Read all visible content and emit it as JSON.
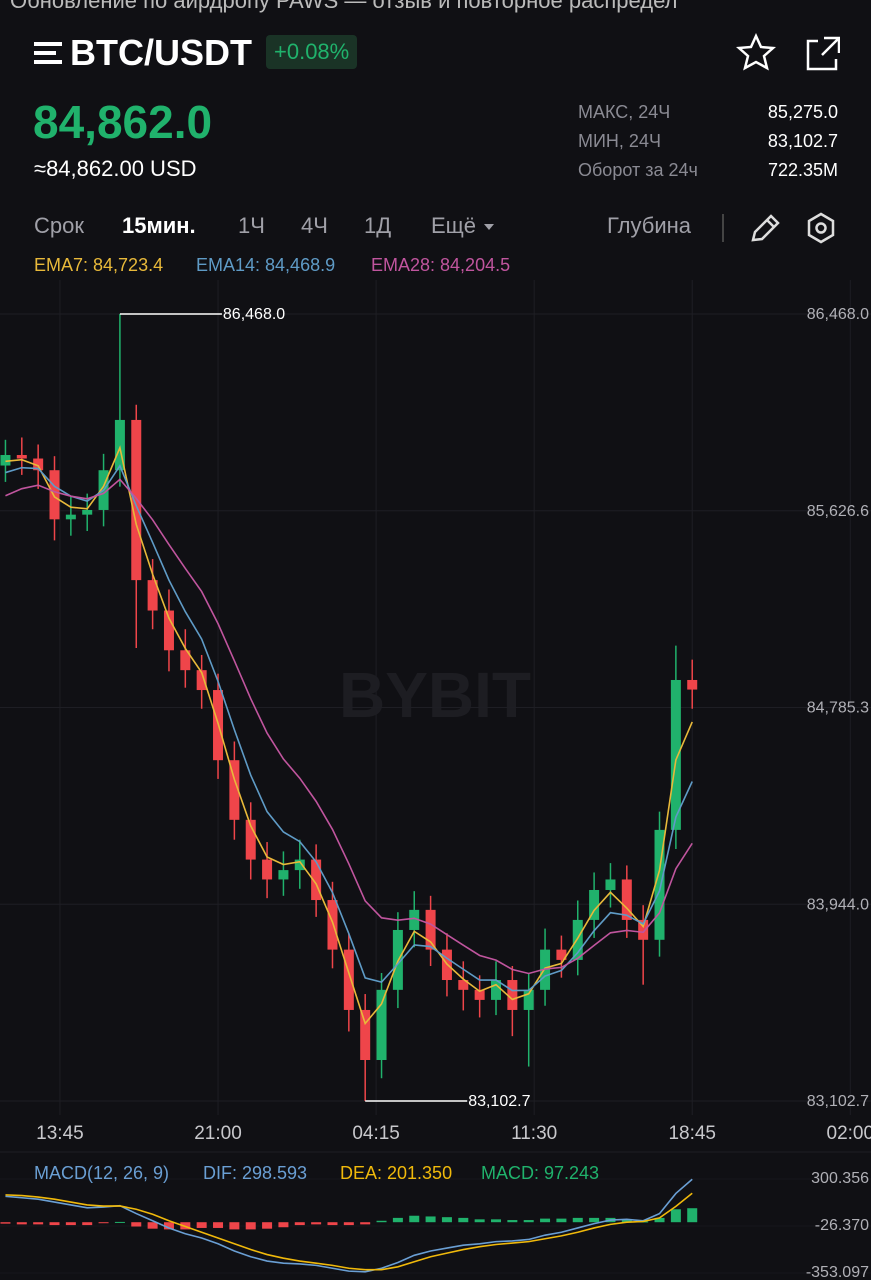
{
  "notification": "Обновление по аирдропу PAWS — отзыв и повторное распредел",
  "header": {
    "symbol": "BTC/USDT",
    "change": "+0.08%",
    "price": "84,862.0",
    "price_usd": "≈84,862.00 USD",
    "stats": [
      {
        "label": "МАКС, 24Ч",
        "value": "85,275.0"
      },
      {
        "label": "МИН, 24Ч",
        "value": "83,102.7"
      },
      {
        "label": "Оборот за 24ч",
        "value": "722.35M"
      }
    ]
  },
  "toolbar": {
    "tabs": [
      "Срок",
      "15мин.",
      "1Ч",
      "4Ч",
      "1Д",
      "Ещё"
    ],
    "depth": "Глубина"
  },
  "chart_data": [
    {
      "type": "candlestick",
      "watermark": "BYBIT",
      "up_color": "#20b26c",
      "down_color": "#ef454a",
      "grid": true,
      "x": [
        -10,
        -7,
        -4,
        -1,
        2,
        5,
        8,
        11,
        14,
        17,
        20,
        23,
        26,
        29,
        32,
        35,
        38,
        41,
        44,
        47,
        50,
        53,
        56,
        59,
        62,
        65,
        68,
        71,
        74,
        77,
        80,
        83,
        86,
        89,
        92,
        95,
        98,
        101,
        104,
        107,
        110,
        113,
        116
      ],
      "open": [
        85820,
        85865,
        85850,
        85800,
        85590,
        85610,
        85630,
        85800,
        86015,
        85330,
        85200,
        85030,
        84945,
        84860,
        84560,
        84305,
        84135,
        84050,
        84090,
        84135,
        83962,
        83750,
        83492,
        83278,
        83578,
        83834,
        83920,
        83750,
        83620,
        83578,
        83535,
        83620,
        83492,
        83578,
        83750,
        83706,
        83877,
        84005,
        84050,
        83877,
        83792,
        84262,
        84903
      ],
      "high": [
        85930,
        85940,
        85910,
        85860,
        85690,
        85700,
        85870,
        86468,
        86080,
        85420,
        85290,
        85120,
        85010,
        84930,
        84640,
        84380,
        84210,
        84170,
        84220,
        84200,
        84040,
        83820,
        83560,
        83650,
        83910,
        84000,
        83980,
        83820,
        83700,
        83640,
        83700,
        83680,
        83650,
        83840,
        83810,
        83960,
        84080,
        84120,
        84110,
        83940,
        84340,
        85050,
        84990
      ],
      "low": [
        85750,
        85780,
        85720,
        85500,
        85520,
        85540,
        85560,
        85730,
        85040,
        85120,
        84940,
        84870,
        84780,
        84480,
        84220,
        84050,
        83970,
        83980,
        84010,
        83890,
        83670,
        83400,
        83102.7,
        83200,
        83500,
        83760,
        83680,
        83550,
        83490,
        83460,
        83470,
        83380,
        83250,
        83510,
        83630,
        83640,
        83800,
        83930,
        83800,
        83600,
        83720,
        84180,
        84780
      ],
      "close": [
        85865,
        85850,
        85800,
        85590,
        85610,
        85630,
        85800,
        86015,
        85330,
        85200,
        85030,
        84945,
        84860,
        84560,
        84305,
        84135,
        84050,
        84090,
        84135,
        83962,
        83750,
        83492,
        83278,
        83578,
        83834,
        83920,
        83750,
        83620,
        83578,
        83535,
        83620,
        83492,
        83578,
        83750,
        83706,
        83877,
        84005,
        84050,
        83877,
        83792,
        84262,
        84903,
        84862
      ],
      "series": [
        {
          "name": "EMA7",
          "legend": "EMA7: 84,723.4",
          "color": "#e8b93a",
          "values": [
            85838,
            85845,
            85819,
            85686,
            85642,
            85635,
            85731,
            85896,
            85568,
            85355,
            85167,
            85038,
            84935,
            84718,
            84478,
            84279,
            84146,
            84114,
            84126,
            84031,
            83868,
            83650,
            83434,
            83518,
            83701,
            83828,
            83783,
            83688,
            83624,
            83572,
            83600,
            83537,
            83561,
            83671,
            83691,
            83799,
            83918,
            83995,
            83927,
            83849,
            84089,
            84561,
            84723.4
          ]
        },
        {
          "name": "EMA14",
          "legend": "EMA14: 84,468.9",
          "color": "#5f9bc6",
          "values": [
            85790,
            85811,
            85807,
            85731,
            85689,
            85668,
            85714,
            85819,
            85648,
            85491,
            85330,
            85195,
            85078,
            84897,
            84690,
            84496,
            84340,
            84253,
            84212,
            84125,
            83994,
            83818,
            83629,
            83611,
            83689,
            83770,
            83763,
            83713,
            83666,
            83620,
            83620,
            83575,
            83576,
            83637,
            83661,
            83737,
            83831,
            83908,
            83897,
            83860,
            84001,
            84317,
            84468.9
          ]
        },
        {
          "name": "EMA28",
          "legend": "EMA28: 84,204.5",
          "color": "#c0559e",
          "values": [
            85691,
            85721,
            85736,
            85708,
            85689,
            85678,
            85701,
            85761,
            85679,
            85588,
            85482,
            85380,
            85281,
            85144,
            84985,
            84823,
            84676,
            84565,
            84483,
            84384,
            84264,
            84117,
            83958,
            83886,
            83876,
            83884,
            83859,
            83814,
            83769,
            83725,
            83705,
            83665,
            83648,
            83667,
            83674,
            83713,
            83768,
            83822,
            83832,
            83824,
            83907,
            84096,
            84204.5
          ]
        }
      ],
      "annotations": [
        {
          "label": "86,468.0",
          "value": 86468,
          "x": 11
        },
        {
          "label": "83,102.7",
          "value": 83102.7,
          "x": 56
        }
      ],
      "xlim": [
        -11,
        148.8
      ],
      "xticks": [
        {
          "value": 0,
          "label": "13:45"
        },
        {
          "value": 29,
          "label": "21:00"
        },
        {
          "value": 58,
          "label": "04:15"
        },
        {
          "value": 87,
          "label": "11:30"
        },
        {
          "value": 116,
          "label": "18:45"
        },
        {
          "value": 145,
          "label": "02:00"
        }
      ],
      "ylim": [
        83042.8,
        86613.4
      ],
      "yticks": [
        {
          "value": 86468,
          "label": "86,468.0"
        },
        {
          "value": 85626.6,
          "label": "85,626.6"
        },
        {
          "value": 84785.3,
          "label": "84,785.3"
        },
        {
          "value": 83944,
          "label": "83,944.0"
        },
        {
          "value": 83102.7,
          "label": "83,102.7"
        }
      ]
    },
    {
      "type": "macd",
      "title": "MACD(12, 26, 9)",
      "x": [
        -10,
        -7,
        -4,
        -1,
        2,
        5,
        8,
        11,
        14,
        17,
        20,
        23,
        26,
        29,
        32,
        35,
        38,
        41,
        44,
        47,
        50,
        53,
        56,
        59,
        62,
        65,
        68,
        71,
        74,
        77,
        80,
        83,
        86,
        89,
        92,
        95,
        98,
        101,
        104,
        107,
        110,
        113,
        116
      ],
      "series": [
        {
          "name": "DIF",
          "legend": "DIF: 298.593",
          "color": "#6a9fd4",
          "values": [
            180,
            170,
            160,
            140,
            120,
            100,
            105,
            115,
            60,
            10,
            -40,
            -80,
            -110,
            -150,
            -200,
            -240,
            -270,
            -285,
            -290,
            -300,
            -320,
            -340,
            -345,
            -320,
            -280,
            -230,
            -200,
            -180,
            -160,
            -150,
            -135,
            -130,
            -120,
            -90,
            -70,
            -40,
            -10,
            15,
            20,
            10,
            60,
            200,
            298.593
          ]
        },
        {
          "name": "DEA",
          "legend": "DEA: 201.350",
          "color": "#f0b90b",
          "values": [
            190,
            185,
            175,
            160,
            140,
            120,
            112,
            113,
            90,
            55,
            10,
            -30,
            -70,
            -110,
            -150,
            -190,
            -225,
            -250,
            -270,
            -285,
            -300,
            -320,
            -330,
            -330,
            -310,
            -275,
            -240,
            -215,
            -190,
            -170,
            -155,
            -145,
            -135,
            -115,
            -95,
            -70,
            -40,
            -15,
            0,
            5,
            30,
            110,
            201.35
          ]
        },
        {
          "name": "MACD",
          "legend": "MACD: 97.243",
          "color": "#20b26c",
          "down_color": "#ef454a",
          "values": [
            -10,
            -15,
            -15,
            -20,
            -20,
            -20,
            -7,
            2,
            -30,
            -45,
            -50,
            -50,
            -40,
            -40,
            -50,
            -50,
            -45,
            -35,
            -20,
            -15,
            -20,
            -20,
            -15,
            10,
            30,
            45,
            40,
            35,
            30,
            20,
            20,
            15,
            15,
            25,
            25,
            30,
            30,
            30,
            20,
            5,
            30,
            90,
            97.243
          ]
        }
      ],
      "xlim": [
        -11,
        148.8
      ],
      "ylim": [
        -353.097,
        300.356
      ],
      "yticks": [
        300.356,
        {
          "value": -26.37,
          "label": "-26.370"
        },
        -353.097
      ]
    }
  ]
}
